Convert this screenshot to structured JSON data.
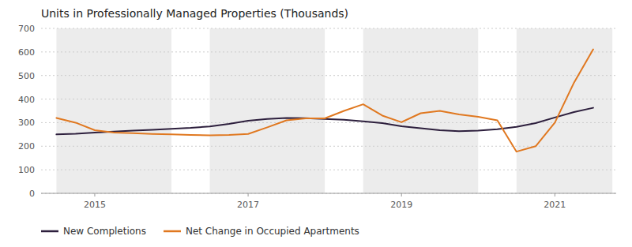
{
  "chart_data": {
    "type": "line",
    "title": "Units in Professionally Managed Properties (Thousands)",
    "x": [
      2014.5,
      2014.75,
      2015.0,
      2015.25,
      2015.5,
      2015.75,
      2016.0,
      2016.25,
      2016.5,
      2016.75,
      2017.0,
      2017.25,
      2017.5,
      2017.75,
      2018.0,
      2018.25,
      2018.5,
      2018.75,
      2019.0,
      2019.25,
      2019.5,
      2019.75,
      2020.0,
      2020.25,
      2020.5,
      2020.75,
      2021.0,
      2021.25,
      2021.5
    ],
    "series": [
      {
        "name": "New Completions",
        "color": "#2d1f3d",
        "values": [
          250,
          253,
          258,
          262,
          266,
          270,
          274,
          278,
          284,
          295,
          308,
          316,
          320,
          319,
          316,
          312,
          306,
          298,
          285,
          276,
          268,
          264,
          266,
          272,
          282,
          298,
          322,
          345,
          363
        ]
      },
      {
        "name": "Net Change in Occupied Apartments",
        "color": "#e07820",
        "values": [
          320,
          300,
          268,
          258,
          255,
          252,
          250,
          248,
          246,
          248,
          252,
          280,
          310,
          318,
          318,
          350,
          378,
          330,
          302,
          340,
          350,
          335,
          325,
          310,
          177,
          200,
          300,
          470,
          611
        ]
      }
    ],
    "shaded_regions": [
      [
        2014.5,
        2016.0
      ],
      [
        2016.5,
        2018.0
      ],
      [
        2018.5,
        2020.0
      ],
      [
        2020.5,
        2021.75
      ]
    ],
    "xlim": [
      2014.3,
      2021.8
    ],
    "xticks": [
      2015,
      2017,
      2019,
      2021
    ],
    "ylim": [
      0,
      700
    ],
    "yticks": [
      0,
      100,
      200,
      300,
      400,
      500,
      600,
      700
    ],
    "grid": true,
    "legend": "bottom"
  }
}
